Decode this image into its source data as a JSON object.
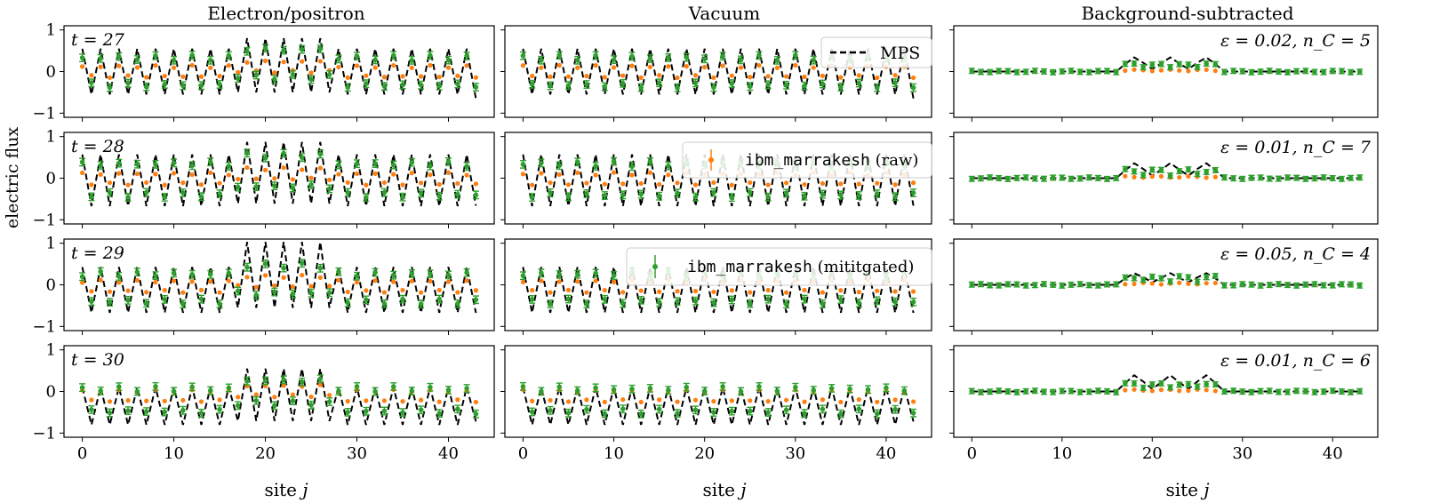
{
  "figure": {
    "ylabel": "electric flux",
    "xlabel_prefix": "site ",
    "xlabel_var": "j"
  },
  "columns": [
    {
      "title": "Electron/positron"
    },
    {
      "title": "Vacuum"
    },
    {
      "title": "Background-subtracted"
    }
  ],
  "rows": [
    {
      "time_label": "t = 27",
      "param_label": "ε = 0.02, n_C = 5"
    },
    {
      "time_label": "t = 28",
      "param_label": "ε = 0.01, n_C = 7"
    },
    {
      "time_label": "t = 29",
      "param_label": "ε = 0.05, n_C = 4"
    },
    {
      "time_label": "t = 30",
      "param_label": "ε = 0.01, n_C = 6"
    }
  ],
  "legend": {
    "mps": "MPS",
    "raw_device": "ibm_marrakesh",
    "raw_suffix": " (raw)",
    "mitigated_device": "ibm_marrakesh",
    "mitigated_suffix": " (mititgated)"
  },
  "colors": {
    "mps": "#000000",
    "raw": "#ff7f0e",
    "mitigated": "#2ca02c"
  },
  "chart_data": {
    "type": "line",
    "layout": "4 rows x 3 columns, shared axes",
    "xlabel": "site j",
    "ylabel": "electric flux",
    "xlim": [
      -2,
      45
    ],
    "xticks": [
      0,
      10,
      20,
      30,
      40
    ],
    "ylim_left": [
      -1.1,
      1.1
    ],
    "yticks_left": [
      -1,
      0,
      1
    ],
    "ylim_right": [
      -1.1,
      1.1
    ],
    "n_sites": 44,
    "series_names": [
      "MPS",
      "ibm_marrakesh (raw)",
      "ibm_marrakesh (mititgated)"
    ],
    "description": "Staggered electric flux vs site j. Electron/positron and Vacuum columns show MPS (dashed), raw and mitigated device data alternating sign site-to-site; background-subtracted column shows signal near sites 17-27.",
    "profiles": {
      "row_ep_amp_mps": [
        0.55,
        0.62,
        0.55,
        0.45
      ],
      "row_ep_bump_mps": [
        0.25,
        0.3,
        0.6,
        0.45
      ],
      "row_vac_amp_mps": [
        0.55,
        0.62,
        0.55,
        0.45
      ],
      "row_offset_mps": [
        0.0,
        -0.05,
        -0.12,
        -0.35
      ],
      "row_bs_bump_mps": [
        0.28,
        0.3,
        0.22,
        0.33
      ],
      "raw_scale": 0.3,
      "mitigated_scale": 0.8
    }
  }
}
